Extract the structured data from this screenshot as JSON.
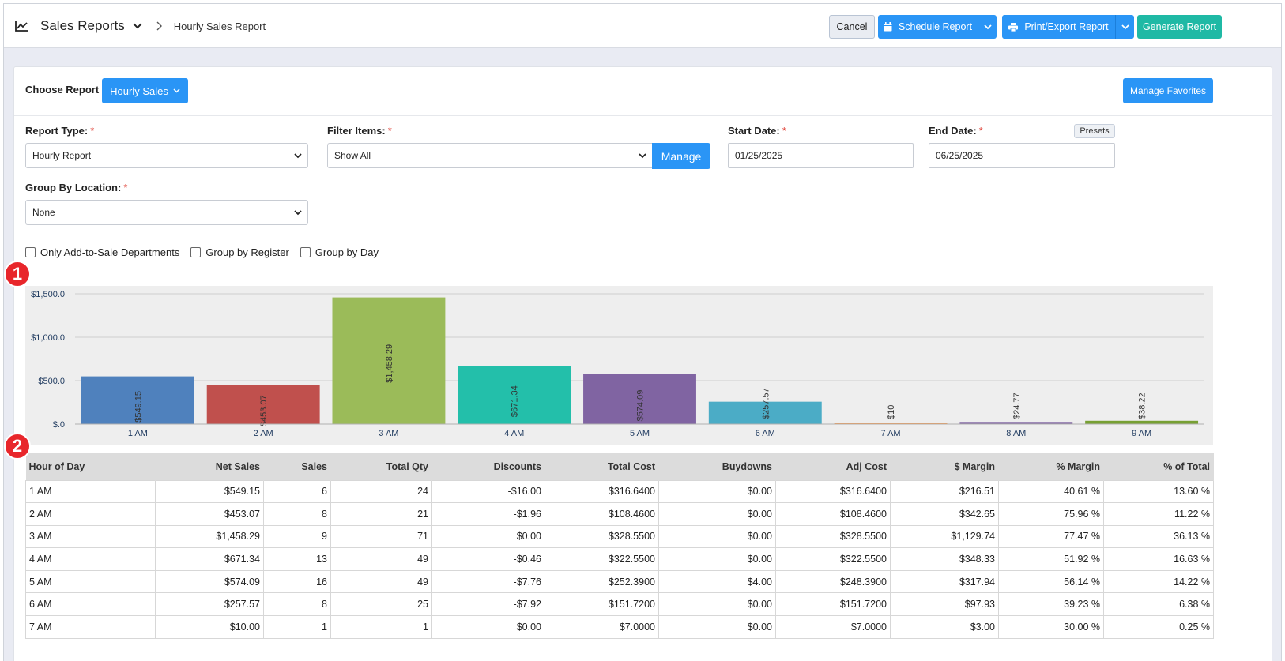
{
  "header": {
    "title": "Sales Reports",
    "breadcrumb": "Hourly Sales Report",
    "cancel_label": "Cancel",
    "schedule_label": "Schedule Report",
    "print_label": "Print/Export Report",
    "generate_label": "Generate Report"
  },
  "report": {
    "choose_label": "Choose Report",
    "selected_report": "Hourly Sales",
    "manage_favorites": "Manage Favorites"
  },
  "form": {
    "report_type_label": "Report Type:",
    "report_type_value": "Hourly Report",
    "filter_items_label": "Filter Items:",
    "filter_items_value": "Show All",
    "manage_label": "Manage",
    "start_date_label": "Start Date:",
    "start_date_value": "01/25/2025",
    "end_date_label": "End Date:",
    "end_date_value": "06/25/2025",
    "presets_label": "Presets",
    "group_location_label": "Group By Location:",
    "group_location_value": "None",
    "required_mark": "*"
  },
  "checkboxes": {
    "add_to_sale": "Only Add-to-Sale Departments",
    "by_register": "Group by Register",
    "by_day": "Group by Day"
  },
  "badges": {
    "one": "1",
    "two": "2"
  },
  "chart_data": {
    "type": "bar",
    "categories": [
      "1 AM",
      "2 AM",
      "3 AM",
      "4 AM",
      "5 AM",
      "6 AM",
      "7 AM",
      "8 AM",
      "9 AM"
    ],
    "values": [
      549.15,
      453.07,
      1458.29,
      671.34,
      574.09,
      257.57,
      10,
      24.77,
      38.22
    ],
    "data_labels": [
      "$549.15",
      "$453.07",
      "$1,458.29",
      "$671.34",
      "$574.09",
      "$257.57",
      "$10",
      "$24.77",
      "$38.22"
    ],
    "colors": [
      "#4f81bd",
      "#c0504d",
      "#9bbb59",
      "#23bfaa",
      "#8064a2",
      "#4bacc6",
      "#f79646",
      "#8064a2",
      "#77a033"
    ],
    "yticks": [
      "$.0",
      "$500.0",
      "$1,000.0",
      "$1,500.0"
    ],
    "ylim": [
      0,
      1500
    ],
    "grid": true,
    "background": "#eeeeee"
  },
  "table": {
    "columns": [
      "Hour of Day",
      "Net Sales",
      "Sales",
      "Total Qty",
      "Discounts",
      "Total Cost",
      "Buydowns",
      "Adj Cost",
      "$ Margin",
      "% Margin",
      "% of Total"
    ],
    "rows": [
      [
        "1 AM",
        "$549.15",
        "6",
        "24",
        "-$16.00",
        "$316.6400",
        "$0.00",
        "$316.6400",
        "$216.51",
        "40.61 %",
        "13.60 %"
      ],
      [
        "2 AM",
        "$453.07",
        "8",
        "21",
        "-$1.96",
        "$108.4600",
        "$0.00",
        "$108.4600",
        "$342.65",
        "75.96 %",
        "11.22 %"
      ],
      [
        "3 AM",
        "$1,458.29",
        "9",
        "71",
        "$0.00",
        "$328.5500",
        "$0.00",
        "$328.5500",
        "$1,129.74",
        "77.47 %",
        "36.13 %"
      ],
      [
        "4 AM",
        "$671.34",
        "13",
        "49",
        "-$0.46",
        "$322.5500",
        "$0.00",
        "$322.5500",
        "$348.33",
        "51.92 %",
        "16.63 %"
      ],
      [
        "5 AM",
        "$574.09",
        "16",
        "49",
        "-$7.76",
        "$252.3900",
        "$4.00",
        "$248.3900",
        "$317.94",
        "56.14 %",
        "14.22 %"
      ],
      [
        "6 AM",
        "$257.57",
        "8",
        "25",
        "-$7.92",
        "$151.7200",
        "$0.00",
        "$151.7200",
        "$97.93",
        "39.23 %",
        "6.38 %"
      ],
      [
        "7 AM",
        "$10.00",
        "1",
        "1",
        "$0.00",
        "$7.0000",
        "$0.00",
        "$7.0000",
        "$3.00",
        "30.00 %",
        "0.25 %"
      ]
    ]
  },
  "colors": {
    "primary": "#2a95f6",
    "success": "#1fb9a5",
    "required": "#e0453b",
    "badge": "#e8262b"
  }
}
